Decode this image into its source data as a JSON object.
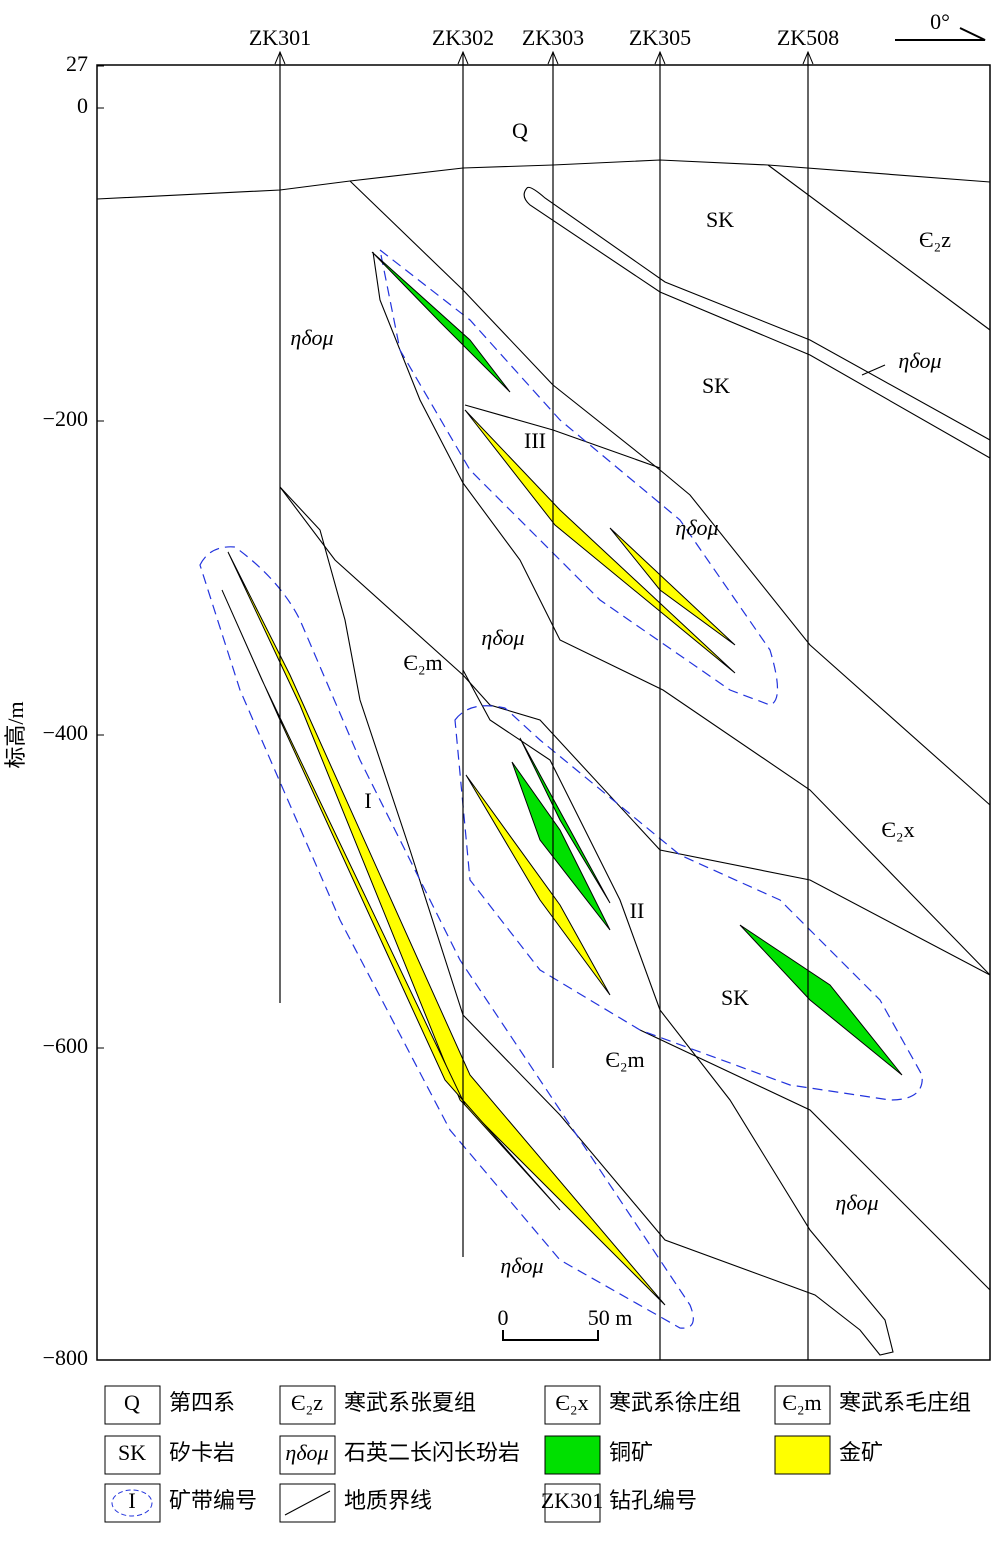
{
  "axis": {
    "label": "标高/m",
    "ticks": [
      "27",
      "0",
      "−200",
      "−400",
      "−600",
      "−800"
    ]
  },
  "north": "0°",
  "drillholes": [
    "ZK301",
    "ZK302",
    "ZK303",
    "ZK305",
    "ZK508"
  ],
  "map_labels": [
    "Q",
    "SK",
    "Є₂z",
    "ηδομ",
    "ηδομ",
    "SK",
    "III",
    "ηδομ",
    "ηδομ",
    "Є₂m",
    "I",
    "Є₂x",
    "II",
    "SK",
    "Є₂m",
    "ηδομ",
    "ηδομ"
  ],
  "scale": {
    "zero": "0",
    "length": "50 m"
  },
  "legend": [
    {
      "symbol": "Q",
      "text": "第四系"
    },
    {
      "symbol": "Є₂z",
      "text": "寒武系张夏组"
    },
    {
      "symbol": "Є₂x",
      "text": "寒武系徐庄组"
    },
    {
      "symbol": "Є₂m",
      "text": "寒武系毛庄组"
    },
    {
      "symbol": "SK",
      "text": "矽卡岩"
    },
    {
      "symbol": "ηδομ",
      "text": "石英二长闪长玢岩"
    },
    {
      "text": "铜矿"
    },
    {
      "text": "金矿"
    },
    {
      "symbol": "I",
      "text": "矿带编号"
    },
    {
      "text": "地质界线"
    },
    {
      "symbol": "ZK301",
      "text": "钻孔编号"
    }
  ]
}
